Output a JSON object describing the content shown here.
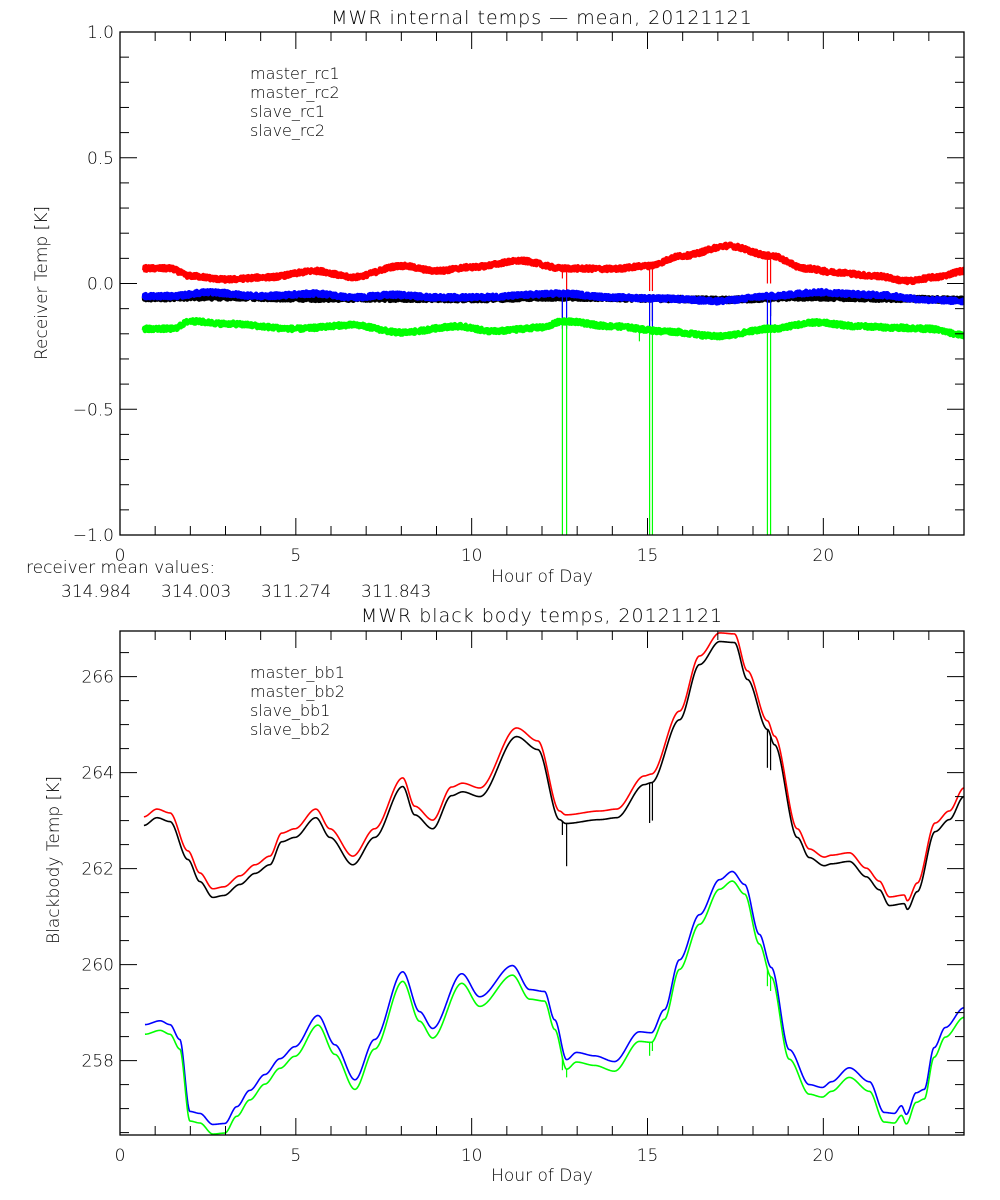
{
  "chart_data": [
    {
      "type": "line",
      "title": "MWR internal temps — mean, 20121121",
      "xlabel": "Hour of Day",
      "ylabel": "Receiver Temp [K]",
      "xlim": [
        0,
        24
      ],
      "ylim": [
        -1.0,
        1.0
      ],
      "xticks": [
        0,
        5,
        10,
        15,
        20
      ],
      "xtick_labels": [
        "0",
        "5",
        "10",
        "15",
        "20"
      ],
      "yticks": [
        -1.0,
        -0.5,
        0.0,
        0.5,
        1.0
      ],
      "ytick_labels": [
        "−1.0",
        "−0.5",
        "0.0",
        "0.5",
        "1.0"
      ],
      "x_minor_step": 1,
      "y_minor_step": 0.1,
      "grid": false,
      "legend_position": "top-left",
      "noisy": true,
      "series": [
        {
          "name": "master_rc1",
          "color": "#000000",
          "x": [
            0.68,
            2.0,
            3.0,
            5.5,
            8.0,
            10.0,
            12.6,
            15.0,
            17.0,
            19.5,
            22.0,
            24.0
          ],
          "y": [
            -0.06,
            -0.055,
            -0.055,
            -0.06,
            -0.06,
            -0.062,
            -0.055,
            -0.06,
            -0.065,
            -0.055,
            -0.06,
            -0.065
          ],
          "spikes": [
            {
              "x": 12.58,
              "y": -0.15
            },
            {
              "x": 15.14,
              "y": -0.15
            },
            {
              "x": 18.5,
              "y": -0.13
            }
          ]
        },
        {
          "name": "master_rc2",
          "color": "#ff0000",
          "x": [
            0.68,
            1.4,
            2.0,
            3.0,
            4.2,
            5.6,
            6.6,
            8.0,
            9.0,
            10.0,
            11.4,
            12.6,
            14.0,
            15.0,
            16.0,
            17.3,
            18.5,
            19.5,
            20.3,
            21.5,
            22.4,
            23.2,
            24.0
          ],
          "y": [
            0.06,
            0.06,
            0.03,
            0.016,
            0.025,
            0.05,
            0.025,
            0.07,
            0.05,
            0.065,
            0.09,
            0.06,
            0.058,
            0.07,
            0.11,
            0.15,
            0.11,
            0.06,
            0.045,
            0.03,
            0.01,
            0.025,
            0.05
          ],
          "spikes": [
            {
              "x": 12.58,
              "y": 0.02
            },
            {
              "x": 12.7,
              "y": -0.03
            },
            {
              "x": 15.06,
              "y": -0.03
            },
            {
              "x": 15.14,
              "y": -0.03
            },
            {
              "x": 18.41,
              "y": 0.0
            },
            {
              "x": 18.5,
              "y": 0.0
            }
          ]
        },
        {
          "name": "slave_rc1",
          "color": "#0000ff",
          "x": [
            0.68,
            1.5,
            2.5,
            4.0,
            5.6,
            6.6,
            7.8,
            9.0,
            10.0,
            12.6,
            14.0,
            15.5,
            17.0,
            18.5,
            19.8,
            21.5,
            23.0,
            24.0
          ],
          "y": [
            -0.05,
            -0.05,
            -0.035,
            -0.05,
            -0.04,
            -0.055,
            -0.045,
            -0.055,
            -0.055,
            -0.04,
            -0.055,
            -0.06,
            -0.07,
            -0.05,
            -0.035,
            -0.045,
            -0.065,
            -0.07
          ],
          "spikes": [
            {
              "x": 12.58,
              "y": -0.18
            },
            {
              "x": 12.7,
              "y": -0.18
            },
            {
              "x": 15.06,
              "y": -0.18
            },
            {
              "x": 15.14,
              "y": -0.18
            },
            {
              "x": 18.41,
              "y": -0.18
            },
            {
              "x": 18.5,
              "y": -0.18
            }
          ]
        },
        {
          "name": "slave_rc2",
          "color": "#00ff00",
          "x": [
            0.68,
            1.5,
            2.0,
            3.0,
            5.0,
            6.6,
            8.0,
            9.6,
            10.6,
            12.0,
            12.6,
            14.0,
            15.5,
            17.0,
            18.5,
            19.8,
            21.0,
            22.0,
            23.0,
            24.0
          ],
          "y": [
            -0.18,
            -0.18,
            -0.15,
            -0.16,
            -0.18,
            -0.165,
            -0.195,
            -0.17,
            -0.19,
            -0.175,
            -0.15,
            -0.17,
            -0.19,
            -0.21,
            -0.18,
            -0.155,
            -0.17,
            -0.175,
            -0.18,
            -0.205
          ],
          "spikes": [
            {
              "x": 12.58,
              "y": -1.0
            },
            {
              "x": 12.7,
              "y": -1.0
            },
            {
              "x": 14.77,
              "y": -0.23
            },
            {
              "x": 15.06,
              "y": -1.0
            },
            {
              "x": 15.14,
              "y": -1.0
            },
            {
              "x": 18.41,
              "y": -1.0
            },
            {
              "x": 18.5,
              "y": -1.0
            }
          ]
        }
      ]
    },
    {
      "type": "line",
      "title": "MWR black body temps, 20121121",
      "xlabel": "Hour of Day",
      "ylabel": "Blackbody Temp [K]",
      "xlim": [
        0,
        24
      ],
      "ylim": [
        256.45,
        266.95
      ],
      "xticks": [
        0,
        5,
        10,
        15,
        20
      ],
      "xtick_labels": [
        "0",
        "5",
        "10",
        "15",
        "20"
      ],
      "yticks": [
        258,
        260,
        262,
        264,
        266
      ],
      "ytick_labels": [
        "258",
        "260",
        "262",
        "264",
        "266"
      ],
      "x_minor_step": 1,
      "y_minor_step": 0.5,
      "grid": false,
      "legend_position": "top-left",
      "series": [
        {
          "name": "master_bb1",
          "color": "#000000",
          "x": [
            0.68,
            1.05,
            1.42,
            1.93,
            2.27,
            2.64,
            2.95,
            3.41,
            3.84,
            4.26,
            4.6,
            4.97,
            5.57,
            5.97,
            6.62,
            7.24,
            8.04,
            8.38,
            8.89,
            9.43,
            9.74,
            10.23,
            11.28,
            11.88,
            12.5,
            12.67,
            13.64,
            14.12,
            14.91,
            15.11,
            15.91,
            16.48,
            17.05,
            17.47,
            17.84,
            18.41,
            18.61,
            19.26,
            19.6,
            20.03,
            20.23,
            20.74,
            21.22,
            21.59,
            21.88,
            22.3,
            22.39,
            22.67,
            23.18,
            23.58,
            24.0
          ],
          "y": [
            262.9,
            263.06,
            262.98,
            262.19,
            261.73,
            261.4,
            261.44,
            261.67,
            261.9,
            262.08,
            262.56,
            262.65,
            263.06,
            262.65,
            262.08,
            262.65,
            263.71,
            263.12,
            262.83,
            263.52,
            263.6,
            263.5,
            264.75,
            264.48,
            263.02,
            262.94,
            263.02,
            263.06,
            263.75,
            263.79,
            265.1,
            266.25,
            266.73,
            266.71,
            265.94,
            264.9,
            264.58,
            262.65,
            262.23,
            262.06,
            262.1,
            262.15,
            261.83,
            261.56,
            261.23,
            261.27,
            261.15,
            261.52,
            262.77,
            263.02,
            263.5
          ],
          "spikes": [
            {
              "x": 12.58,
              "y": 262.7
            },
            {
              "x": 12.7,
              "y": 262.05
            },
            {
              "x": 15.06,
              "y": 262.95
            },
            {
              "x": 15.14,
              "y": 263.0
            },
            {
              "x": 18.41,
              "y": 264.1
            },
            {
              "x": 18.5,
              "y": 264.05
            }
          ]
        },
        {
          "name": "master_bb2",
          "color": "#ff0000",
          "offset_from": "master_bb1",
          "offset": 0.18
        },
        {
          "name": "slave_bb1",
          "color": "#0000ff",
          "x": [
            0.71,
            1.14,
            1.42,
            1.7,
            1.99,
            2.27,
            2.64,
            2.98,
            3.32,
            3.69,
            4.12,
            4.55,
            4.97,
            5.63,
            6.11,
            6.68,
            7.24,
            8.04,
            8.52,
            8.89,
            9.72,
            10.23,
            11.16,
            11.65,
            12.07,
            12.36,
            12.7,
            12.98,
            13.49,
            14.06,
            14.77,
            15.11,
            15.48,
            15.91,
            16.48,
            17.05,
            17.41,
            17.76,
            18.18,
            18.52,
            19.03,
            19.6,
            19.97,
            20.23,
            20.74,
            21.31,
            21.73,
            22.02,
            22.22,
            22.36,
            22.64,
            22.87,
            23.15,
            23.47,
            24.0
          ],
          "y": [
            258.75,
            258.83,
            258.75,
            258.44,
            256.94,
            256.9,
            256.67,
            256.69,
            257.04,
            257.38,
            257.71,
            258.04,
            258.29,
            258.94,
            258.33,
            257.6,
            258.44,
            259.85,
            259.02,
            258.67,
            259.81,
            259.33,
            259.98,
            259.48,
            259.44,
            258.85,
            258.02,
            258.17,
            258.1,
            257.98,
            258.6,
            258.58,
            259.06,
            260.1,
            261.04,
            261.77,
            261.94,
            261.67,
            260.63,
            259.94,
            258.23,
            257.5,
            257.44,
            257.56,
            257.85,
            257.56,
            256.92,
            256.9,
            257.06,
            256.88,
            257.33,
            257.4,
            258.27,
            258.69,
            259.1
          ],
          "spikes": []
        },
        {
          "name": "slave_bb2",
          "color": "#00ff00",
          "offset_from": "slave_bb1",
          "offset": -0.2,
          "spikes": [
            {
              "x": 12.58,
              "y": 257.8
            },
            {
              "x": 12.7,
              "y": 257.65
            },
            {
              "x": 15.06,
              "y": 258.1
            },
            {
              "x": 15.14,
              "y": 258.2
            },
            {
              "x": 18.41,
              "y": 259.55
            },
            {
              "x": 18.5,
              "y": 259.45
            }
          ]
        }
      ]
    }
  ],
  "mean_values": {
    "label": "receiver mean values:",
    "values": [
      {
        "text": "314.984",
        "color": "#000000"
      },
      {
        "text": "314.003",
        "color": "#ff0000"
      },
      {
        "text": "311.274",
        "color": "#0000ff"
      },
      {
        "text": "311.843",
        "color": "#00ff00"
      }
    ]
  }
}
